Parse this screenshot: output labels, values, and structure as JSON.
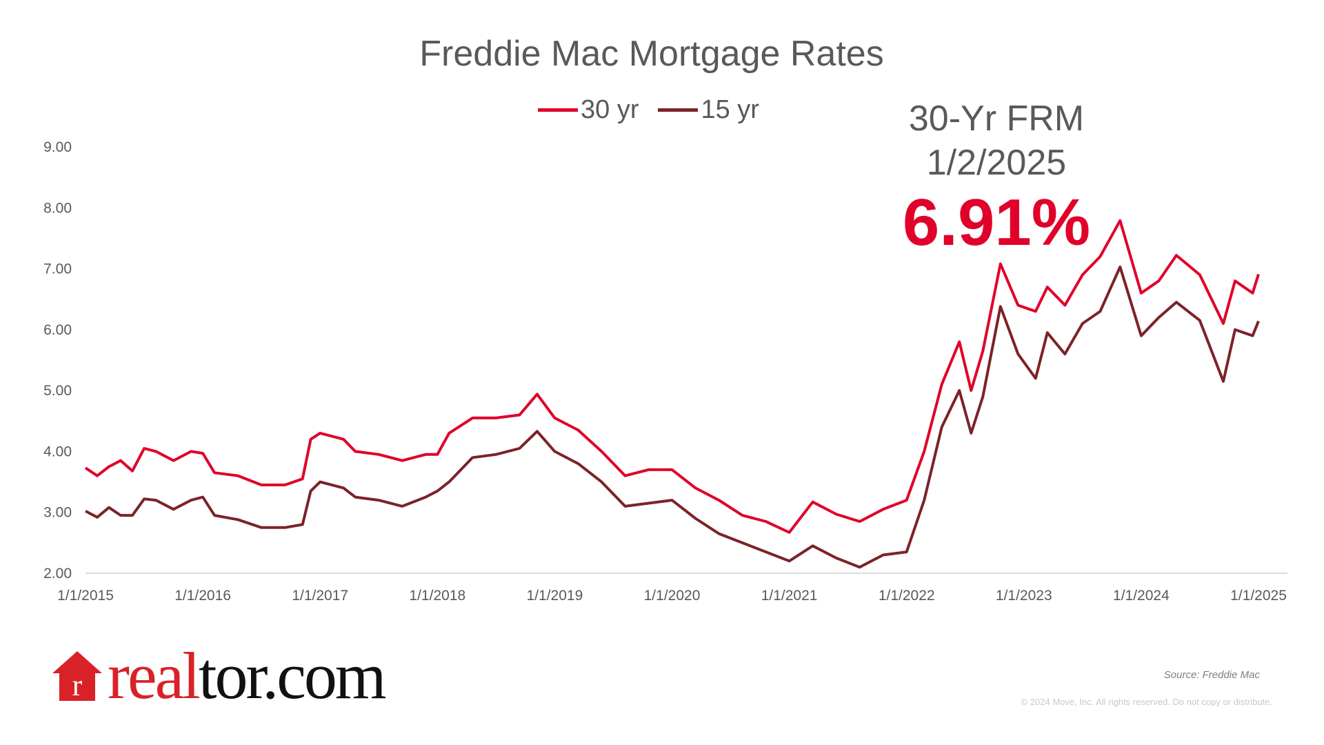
{
  "chart_data": {
    "type": "line",
    "title": "Freddie Mac Mortgage Rates",
    "xlabel": "",
    "ylabel": "",
    "ylim": [
      2,
      9
    ],
    "xlim": [
      2015,
      2025.27
    ],
    "y_ticks": [
      "9.00",
      "8.00",
      "7.00",
      "6.00",
      "5.00",
      "4.00",
      "3.00",
      "2.00"
    ],
    "x_ticks": [
      "1/1/2015",
      "1/1/2016",
      "1/1/2017",
      "1/1/2018",
      "1/1/2019",
      "1/1/2020",
      "1/1/2021",
      "1/1/2022",
      "1/1/2023",
      "1/1/2024",
      "1/1/2025"
    ],
    "grid": false,
    "legend_position": "top-center",
    "series": [
      {
        "name": "30 yr",
        "color": "#e0002a",
        "x": [
          2015.0,
          2015.1,
          2015.2,
          2015.3,
          2015.4,
          2015.5,
          2015.6,
          2015.75,
          2015.9,
          2016.0,
          2016.1,
          2016.3,
          2016.5,
          2016.7,
          2016.85,
          2016.92,
          2017.0,
          2017.2,
          2017.3,
          2017.5,
          2017.7,
          2017.9,
          2018.0,
          2018.1,
          2018.3,
          2018.5,
          2018.7,
          2018.85,
          2019.0,
          2019.2,
          2019.4,
          2019.6,
          2019.8,
          2020.0,
          2020.2,
          2020.4,
          2020.6,
          2020.8,
          2021.0,
          2021.2,
          2021.4,
          2021.6,
          2021.8,
          2022.0,
          2022.15,
          2022.3,
          2022.45,
          2022.55,
          2022.65,
          2022.8,
          2022.95,
          2023.1,
          2023.2,
          2023.35,
          2023.5,
          2023.65,
          2023.82,
          2024.0,
          2024.15,
          2024.3,
          2024.5,
          2024.7,
          2024.8,
          2024.95,
          2025.0
        ],
        "values": [
          3.73,
          3.6,
          3.75,
          3.85,
          3.68,
          4.05,
          4.0,
          3.85,
          4.0,
          3.97,
          3.65,
          3.6,
          3.45,
          3.45,
          3.55,
          4.2,
          4.3,
          4.2,
          4.0,
          3.95,
          3.85,
          3.95,
          3.95,
          4.3,
          4.55,
          4.55,
          4.6,
          4.94,
          4.55,
          4.35,
          4.0,
          3.6,
          3.7,
          3.7,
          3.4,
          3.2,
          2.95,
          2.85,
          2.67,
          3.17,
          2.97,
          2.85,
          3.05,
          3.2,
          4.0,
          5.1,
          5.8,
          5.0,
          5.65,
          7.08,
          6.4,
          6.3,
          6.7,
          6.4,
          6.9,
          7.2,
          7.79,
          6.6,
          6.8,
          7.22,
          6.9,
          6.1,
          6.8,
          6.6,
          6.91
        ]
      },
      {
        "name": "15 yr",
        "color": "#7b2328",
        "x": [
          2015.0,
          2015.1,
          2015.2,
          2015.3,
          2015.4,
          2015.5,
          2015.6,
          2015.75,
          2015.9,
          2016.0,
          2016.1,
          2016.3,
          2016.5,
          2016.7,
          2016.85,
          2016.92,
          2017.0,
          2017.2,
          2017.3,
          2017.5,
          2017.7,
          2017.9,
          2018.0,
          2018.1,
          2018.3,
          2018.5,
          2018.7,
          2018.85,
          2019.0,
          2019.2,
          2019.4,
          2019.6,
          2019.8,
          2020.0,
          2020.2,
          2020.4,
          2020.6,
          2020.8,
          2021.0,
          2021.2,
          2021.4,
          2021.6,
          2021.8,
          2022.0,
          2022.15,
          2022.3,
          2022.45,
          2022.55,
          2022.65,
          2022.8,
          2022.95,
          2023.1,
          2023.2,
          2023.35,
          2023.5,
          2023.65,
          2023.82,
          2024.0,
          2024.15,
          2024.3,
          2024.5,
          2024.7,
          2024.8,
          2024.95,
          2025.0
        ],
        "values": [
          3.02,
          2.92,
          3.08,
          2.95,
          2.95,
          3.22,
          3.2,
          3.05,
          3.2,
          3.25,
          2.95,
          2.88,
          2.75,
          2.75,
          2.8,
          3.35,
          3.5,
          3.4,
          3.25,
          3.2,
          3.1,
          3.25,
          3.35,
          3.5,
          3.9,
          3.95,
          4.05,
          4.33,
          4.0,
          3.8,
          3.5,
          3.1,
          3.15,
          3.2,
          2.9,
          2.65,
          2.5,
          2.35,
          2.2,
          2.45,
          2.25,
          2.1,
          2.3,
          2.35,
          3.2,
          4.4,
          5.0,
          4.3,
          4.9,
          6.38,
          5.6,
          5.2,
          5.95,
          5.6,
          6.1,
          6.3,
          7.03,
          5.9,
          6.2,
          6.45,
          6.15,
          5.15,
          6.0,
          5.9,
          6.14
        ]
      }
    ]
  },
  "callout": {
    "line1": "30-Yr FRM",
    "line2": "1/2/2025",
    "value": "6.91%"
  },
  "brand": {
    "name": "realtor.com",
    "part1": "real",
    "part2": "tor.com",
    "color": "#d92228"
  },
  "footer": {
    "source": "Source: Freddie Mac",
    "copyright": "© 2024 Move, Inc. All rights reserved. Do not copy or distribute."
  }
}
